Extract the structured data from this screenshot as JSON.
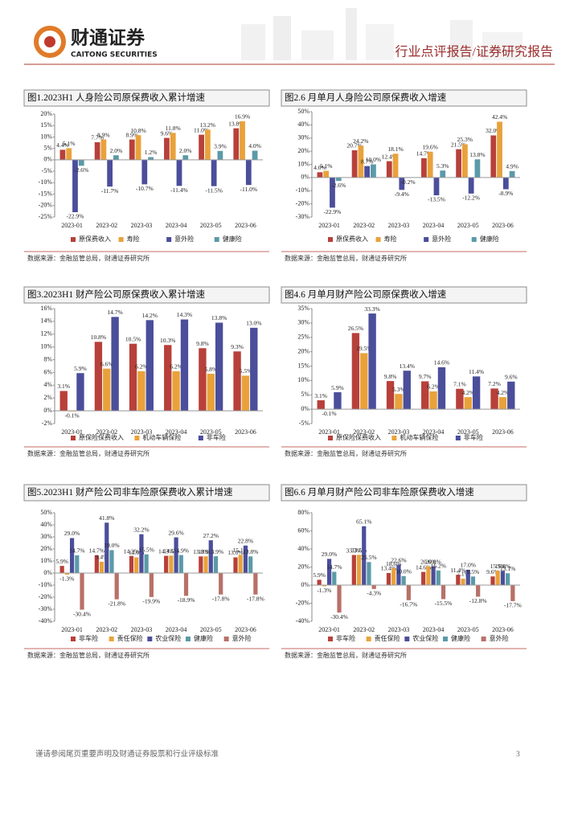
{
  "header": {
    "logo": "财通证券",
    "logo_en": "CAITONG SECURITIES",
    "report_type": "行业点评报告/证券研究报告"
  },
  "chart_data": [
    {
      "type": "bar",
      "title": "图1.2023H1 人身险公司原保费收入累计增速",
      "categories": [
        "2023-01",
        "2023-02",
        "2023-03",
        "2023-04",
        "2023-05",
        "2023-06"
      ],
      "series": [
        {
          "name": "原保费收入",
          "color": "#b8403a",
          "values": [
            4.4,
            7.7,
            8.9,
            9.6,
            11.0,
            13.8
          ],
          "value_labels": [
            "4.4%",
            "7.7%",
            "8.9%",
            "9.6%",
            "11.0%",
            "13.8%"
          ]
        },
        {
          "name": "寿险",
          "color": "#e9a23b",
          "values": [
            5.1,
            8.9,
            10.8,
            11.8,
            13.2,
            16.9
          ],
          "value_labels": [
            "5.1%",
            "8.9%",
            "10.8%",
            "11.8%",
            "13.2%",
            "16.9%"
          ]
        },
        {
          "name": "意外险",
          "color": "#4b4e9a",
          "values": [
            -22.9,
            -11.7,
            -10.7,
            -11.4,
            -11.5,
            -11.0
          ],
          "value_labels": [
            "-22.9%",
            "-11.7%",
            "-10.7%",
            "-11.4%",
            "-11.5%",
            "-11.0%"
          ]
        },
        {
          "name": "健康险",
          "color": "#5b9aa8",
          "values": [
            -2.6,
            2.0,
            1.2,
            2.0,
            3.9,
            4.0
          ],
          "value_labels": [
            "-2.6%",
            "2.0%",
            "1.2%",
            "2.0%",
            "3.9%",
            "4.0%"
          ]
        }
      ],
      "ylim": [
        -25,
        20
      ],
      "yticks": [
        {
          "value": -25,
          "label": "-25%"
        },
        {
          "value": -20,
          "label": "-20%"
        },
        {
          "value": -15,
          "label": "-15%"
        },
        {
          "value": -10,
          "label": "-10%"
        },
        {
          "value": -5,
          "label": "-5%"
        },
        {
          "value": 0,
          "label": "0%"
        },
        {
          "value": 5,
          "label": "5%"
        },
        {
          "value": 10,
          "label": "10%"
        },
        {
          "value": 15,
          "label": "15%"
        },
        {
          "value": 20,
          "label": "20%"
        }
      ],
      "source": "数据来源：金融监管总局，财通证券研究所"
    },
    {
      "type": "bar",
      "title": "图2.6 月单月人身险公司原保费收入增速",
      "categories": [
        "2023-01",
        "2023-02",
        "2023-03",
        "2023-04",
        "2023-05",
        "2023-06"
      ],
      "series": [
        {
          "name": "原保费收入",
          "color": "#b8403a",
          "values": [
            4.0,
            20.7,
            12.4,
            14.7,
            21.5,
            32.0
          ],
          "value_labels": [
            "4.0%",
            "20.7%",
            "12.4%",
            "14.7%",
            "21.5%",
            "32.0%"
          ]
        },
        {
          "name": "寿险",
          "color": "#e9a23b",
          "values": [
            5.1,
            24.2,
            18.1,
            19.6,
            25.3,
            42.4
          ],
          "value_labels": [
            "5.1%",
            "24.2%",
            "18.1%",
            "19.6%",
            "25.3%",
            "42.4%"
          ]
        },
        {
          "name": "意外险",
          "color": "#4b4e9a",
          "values": [
            -22.9,
            8.7,
            -9.4,
            -13.5,
            -12.2,
            -8.9
          ],
          "value_labels": [
            "-22.9%",
            "8.7%",
            "-9.4%",
            "-13.5%",
            "-12.2%",
            "-8.9%"
          ]
        },
        {
          "name": "健康险",
          "color": "#5b9aa8",
          "values": [
            -2.6,
            10.0,
            -0.2,
            5.3,
            13.8,
            4.9
          ],
          "value_labels": [
            "-2.6%",
            "10.0%",
            "-0.2%",
            "5.3%",
            "13.8%",
            "4.9%"
          ]
        }
      ],
      "ylim": [
        -30,
        50
      ],
      "yticks": [
        {
          "value": -30,
          "label": "-30%"
        },
        {
          "value": -20,
          "label": "-20%"
        },
        {
          "value": -10,
          "label": "-10%"
        },
        {
          "value": 0,
          "label": "0%"
        },
        {
          "value": 10,
          "label": "10%"
        },
        {
          "value": 20,
          "label": "20%"
        },
        {
          "value": 30,
          "label": "30%"
        },
        {
          "value": 40,
          "label": "40%"
        },
        {
          "value": 50,
          "label": "50%"
        }
      ],
      "source": "数据来源：金融监管总局，财通证券研究所"
    },
    {
      "type": "bar",
      "title": "图3.2023H1 财产险公司原保费收入累计增速",
      "categories": [
        "2023-01",
        "2023-02",
        "2023-03",
        "2023-04",
        "2023-05",
        "2023-06"
      ],
      "series": [
        {
          "name": "原保险保费收入",
          "color": "#b8403a",
          "values": [
            3.1,
            10.8,
            10.5,
            10.3,
            9.8,
            9.3
          ],
          "value_labels": [
            "3.1%",
            "10.8%",
            "10.5%",
            "10.3%",
            "9.8%",
            "9.3%"
          ]
        },
        {
          "name": "机动车辆保险",
          "color": "#e9a23b",
          "values": [
            -0.1,
            6.6,
            6.2,
            6.2,
            5.8,
            5.5
          ],
          "value_labels": [
            "-0.1%",
            "6.6%",
            "6.2%",
            "6.2%",
            "5.8%",
            "5.5%"
          ]
        },
        {
          "name": "非车险",
          "color": "#4b4e9a",
          "values": [
            5.9,
            14.7,
            14.2,
            14.3,
            13.8,
            13.0
          ],
          "value_labels": [
            "5.9%",
            "14.7%",
            "14.2%",
            "14.3%",
            "13.8%",
            "13.0%"
          ]
        }
      ],
      "ylim": [
        -2,
        16
      ],
      "yticks": [
        {
          "value": -2,
          "label": "-2%"
        },
        {
          "value": 0,
          "label": "0%"
        },
        {
          "value": 2,
          "label": "2%"
        },
        {
          "value": 4,
          "label": "4%"
        },
        {
          "value": 6,
          "label": "6%"
        },
        {
          "value": 8,
          "label": "8%"
        },
        {
          "value": 10,
          "label": "10%"
        },
        {
          "value": 12,
          "label": "12%"
        },
        {
          "value": 14,
          "label": "14%"
        },
        {
          "value": 16,
          "label": "16%"
        }
      ],
      "source": "数据来源：金融监管总局，财通证券研究所"
    },
    {
      "type": "bar",
      "title": "图4.6 月单月财产险公司原保费收入增速",
      "categories": [
        "2023-01",
        "2023-02",
        "2023-03",
        "2023-04",
        "2023-05",
        "2023-06"
      ],
      "series": [
        {
          "name": "原保险保费收入",
          "color": "#b8403a",
          "values": [
            3.1,
            26.5,
            9.8,
            9.7,
            7.1,
            7.2
          ],
          "value_labels": [
            "3.1%",
            "26.5%",
            "9.8%",
            "9.7%",
            "7.1%",
            "7.2%"
          ]
        },
        {
          "name": "机动车辆保险",
          "color": "#e9a23b",
          "values": [
            -0.1,
            19.5,
            5.3,
            6.2,
            4.2,
            4.2
          ],
          "value_labels": [
            "-0.1%",
            "19.5%",
            "5.3%",
            "6.2%",
            "4.2%",
            "4.2%"
          ]
        },
        {
          "name": "非车险",
          "color": "#4b4e9a",
          "values": [
            5.9,
            33.3,
            13.4,
            14.6,
            11.4,
            9.6
          ],
          "value_labels": [
            "5.9%",
            "33.3%",
            "13.4%",
            "14.6%",
            "11.4%",
            "9.6%"
          ]
        }
      ],
      "ylim": [
        -5,
        35
      ],
      "yticks": [
        {
          "value": -5,
          "label": "-5%"
        },
        {
          "value": 0,
          "label": "0%"
        },
        {
          "value": 5,
          "label": "5%"
        },
        {
          "value": 10,
          "label": "10%"
        },
        {
          "value": 15,
          "label": "15%"
        },
        {
          "value": 20,
          "label": "20%"
        },
        {
          "value": 25,
          "label": "25%"
        },
        {
          "value": 30,
          "label": "30%"
        },
        {
          "value": 35,
          "label": "35%"
        }
      ],
      "source": "数据来源：金融监管总局，财通证券研究所"
    },
    {
      "type": "bar",
      "title": "图5.2023H1 财产险公司非车险原保费收入累计增速",
      "categories": [
        "2023-01",
        "2023-02",
        "2023-03",
        "2023-04",
        "2023-05",
        "2023-06"
      ],
      "series": [
        {
          "name": "非车险",
          "color": "#b8403a",
          "values": [
            5.9,
            14.7,
            14.2,
            14.3,
            13.8,
            13.0
          ],
          "value_labels": [
            "5.9%",
            "14.7%",
            "14.2%",
            "14.3%",
            "13.8%",
            "13.0%"
          ]
        },
        {
          "name": "责任保险",
          "color": "#e9a23b",
          "values": [
            -1.3,
            9.4,
            13.0,
            14.5,
            13.9,
            15.1
          ],
          "value_labels": [
            "-1.3%",
            "9.4%",
            "13.0%",
            "14.5%",
            "13.9%",
            "15.1%"
          ]
        },
        {
          "name": "农业保险",
          "color": "#4b4e9a",
          "values": [
            29.0,
            41.8,
            32.2,
            29.6,
            27.2,
            22.8
          ],
          "value_labels": [
            "29.0%",
            "41.8%",
            "32.2%",
            "29.6%",
            "27.2%",
            "22.8%"
          ]
        },
        {
          "name": "健康险",
          "color": "#5b9aa8",
          "values": [
            14.7,
            19.0,
            15.5,
            14.9,
            13.9,
            13.8
          ],
          "value_labels": [
            "14.7%",
            "19.0%",
            "15.5%",
            "14.9%",
            "13.9%",
            "13.8%"
          ]
        },
        {
          "name": "意外险",
          "color": "#b87068",
          "values": [
            -30.4,
            -21.8,
            -19.9,
            -18.9,
            -17.8,
            -17.8
          ],
          "value_labels": [
            "-30.4%",
            "-21.8%",
            "-19.9%",
            "-18.9%",
            "-17.8%",
            "-17.8%"
          ]
        }
      ],
      "ylim": [
        -40,
        50
      ],
      "yticks": [
        {
          "value": -40,
          "label": "-40%"
        },
        {
          "value": -30,
          "label": "-30%"
        },
        {
          "value": -20,
          "label": "-20%"
        },
        {
          "value": -10,
          "label": "-10%"
        },
        {
          "value": 0,
          "label": "0%"
        },
        {
          "value": 10,
          "label": "10%"
        },
        {
          "value": 20,
          "label": "20%"
        },
        {
          "value": 30,
          "label": "30%"
        },
        {
          "value": 40,
          "label": "40%"
        },
        {
          "value": 50,
          "label": "50%"
        }
      ],
      "source": "数据来源：金融监管总局，财通证券研究所"
    },
    {
      "type": "bar",
      "title": "图6.6 月单月财产险公司非车险原保费收入增速",
      "categories": [
        "2023-01",
        "2023-02",
        "2023-03",
        "2023-04",
        "2023-05",
        "2023-06"
      ],
      "series": [
        {
          "name": "非车险",
          "color": "#b8403a",
          "values": [
            5.9,
            33.3,
            13.4,
            14.6,
            11.4,
            9.6
          ],
          "value_labels": [
            "5.9%",
            "33.3%",
            "13.4%",
            "14.6%",
            "11.4%",
            "9.6%"
          ]
        },
        {
          "name": "责任保险",
          "color": "#e9a23b",
          "values": [
            -1.3,
            33.5,
            18.6,
            20.6,
            7.1,
            15.9
          ],
          "value_labels": [
            "-1.3%",
            "33.5%",
            "18.6%",
            "20.6%",
            "7.1%",
            "15.9%"
          ]
        },
        {
          "name": "农业保险",
          "color": "#4b4e9a",
          "values": [
            29.0,
            65.1,
            22.6,
            20.8,
            17.0,
            15.8
          ],
          "value_labels": [
            "29.0%",
            "65.1%",
            "22.6%",
            "20.8%",
            "17.0%",
            "15.8%"
          ]
        },
        {
          "name": "健康险",
          "color": "#5b9aa8",
          "values": [
            14.7,
            25.5,
            10.0,
            16.2,
            9.5,
            13.1
          ],
          "value_labels": [
            "14.7%",
            "25.5%",
            "10.0%",
            "16.2%",
            "9.5%",
            "13.1%"
          ]
        },
        {
          "name": "意外险",
          "color": "#b87068",
          "values": [
            -30.4,
            -4.3,
            -16.7,
            -15.5,
            -12.8,
            -17.7
          ],
          "value_labels": [
            "-30.4%",
            "-4.3%",
            "-16.7%",
            "-15.5%",
            "-12.8%",
            "-17.7%"
          ]
        }
      ],
      "ylim": [
        -40,
        80
      ],
      "yticks": [
        {
          "value": -40,
          "label": "-40%"
        },
        {
          "value": -20,
          "label": "-20%"
        },
        {
          "value": 0,
          "label": "0%"
        },
        {
          "value": 20,
          "label": "20%"
        },
        {
          "value": 40,
          "label": "40%"
        },
        {
          "value": 60,
          "label": "60%"
        },
        {
          "value": 80,
          "label": "80%"
        }
      ],
      "source": "数据来源：金融监管总局，财通证券研究所"
    }
  ],
  "footer": {
    "disclaimer": "谨请参阅尾页重要声明及财通证券股票和行业评级标准",
    "page": "3"
  }
}
